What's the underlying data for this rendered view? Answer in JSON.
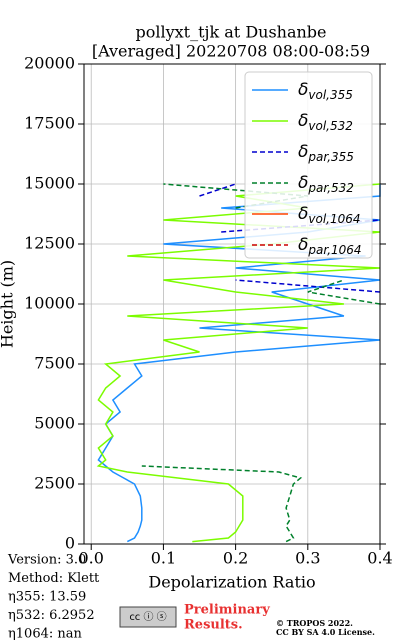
{
  "chart_data": {
    "type": "line",
    "title": "pollyxt_tjk at Dushanbe",
    "subtitle": "[Averaged] 20220708 08:00-08:59",
    "x_label": "Depolarization Ratio",
    "y_label": "Height (m)",
    "heights": [
      100,
      250,
      500,
      750,
      1000,
      1500,
      2000,
      2500,
      2750,
      3000,
      3250,
      3500,
      4000,
      4500,
      5000,
      5500,
      6000,
      6500,
      7000,
      7500,
      8000,
      8500,
      9000,
      9500,
      10000,
      10500,
      11000,
      11500,
      12000,
      12500,
      13000,
      13500,
      14000,
      14500,
      15000
    ],
    "series": [
      {
        "name": "δvol,355",
        "color": "#1e8fff",
        "dash": false,
        "values": [
          0.05,
          0.06,
          0.065,
          0.068,
          0.07,
          0.07,
          0.068,
          0.06,
          0.045,
          0.03,
          0.02,
          0.01,
          0.02,
          0.03,
          0.02,
          0.04,
          0.03,
          0.05,
          0.07,
          0.06,
          0.2,
          0.4,
          0.15,
          0.35,
          0.3,
          0.25,
          0.4,
          0.2,
          0.38,
          0.1,
          0.3,
          0.4,
          0.18,
          0.4,
          0.4
        ]
      },
      {
        "name": "δvol,532",
        "color": "#7cfc00",
        "dash": false,
        "values": [
          0.14,
          0.19,
          0.2,
          0.205,
          0.21,
          0.21,
          0.21,
          0.19,
          0.12,
          0.05,
          0.01,
          0.02,
          0.01,
          0.03,
          0.02,
          0.03,
          0.01,
          0.02,
          0.04,
          0.02,
          0.15,
          0.1,
          0.3,
          0.05,
          0.35,
          0.2,
          0.1,
          0.4,
          0.05,
          0.25,
          0.4,
          0.1,
          0.3,
          0.2,
          0.4
        ]
      },
      {
        "name": "δpar,355",
        "color": "#0000cd",
        "dash": true,
        "values": [
          null,
          null,
          null,
          null,
          null,
          null,
          null,
          null,
          null,
          null,
          null,
          null,
          null,
          null,
          null,
          null,
          null,
          null,
          null,
          null,
          null,
          0.3,
          null,
          0.25,
          null,
          0.4,
          0.2,
          null,
          0.35,
          null,
          0.18,
          0.4,
          null,
          0.15,
          0.2
        ]
      },
      {
        "name": "δpar,532",
        "color": "#00802b",
        "dash": true,
        "values": [
          0.27,
          0.28,
          0.275,
          0.27,
          0.275,
          0.27,
          0.275,
          0.28,
          0.29,
          0.26,
          0.07,
          null,
          null,
          null,
          null,
          null,
          null,
          null,
          null,
          null,
          null,
          null,
          0.2,
          null,
          0.4,
          0.3,
          0.35,
          null,
          0.25,
          null,
          0.4,
          null,
          0.2,
          0.3,
          0.1
        ]
      },
      {
        "name": "δvol,1064",
        "color": "#ff4500",
        "dash": false,
        "values": [
          null,
          null,
          null,
          null,
          null,
          null,
          null,
          null,
          null,
          null,
          null,
          null,
          null,
          null,
          null,
          null,
          null,
          null,
          null,
          null,
          null,
          null,
          null,
          null,
          null,
          null,
          null,
          null,
          null,
          null,
          null,
          null,
          null,
          null,
          null
        ]
      },
      {
        "name": "δpar,1064",
        "color": "#cc0000",
        "dash": true,
        "values": [
          null,
          null,
          null,
          null,
          null,
          null,
          null,
          null,
          null,
          null,
          null,
          null,
          null,
          null,
          null,
          null,
          null,
          null,
          null,
          null,
          null,
          null,
          null,
          null,
          null,
          null,
          null,
          null,
          null,
          null,
          null,
          null,
          null,
          null,
          null
        ]
      }
    ],
    "xlim": [
      -0.01,
      0.4
    ],
    "ylim": [
      0,
      20000
    ],
    "xticks": [
      {
        "value": 0,
        "label": "0.0"
      },
      0.1,
      0.2,
      0.3,
      0.4
    ],
    "yticks": [
      0,
      2500,
      5000,
      7500,
      10000,
      12500,
      15000,
      17500,
      20000
    ],
    "grid": true,
    "legend": "upper right",
    "info": [
      "Version: 3.0",
      "Method: Klett",
      "η355:  13.59",
      "η532: 6.2952",
      "η1064:    nan"
    ],
    "logo_text": [
      "Preliminary",
      "Results."
    ],
    "license": [
      "© TROPOS 2022.",
      "CC BY SA 4.0 License."
    ]
  }
}
